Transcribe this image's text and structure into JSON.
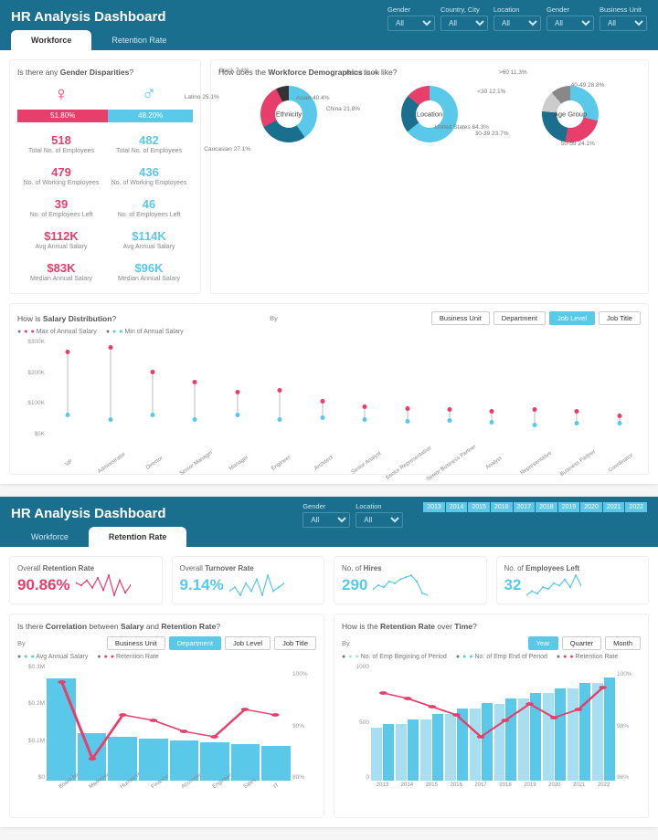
{
  "colors": {
    "brand": "#1a6e8e",
    "accent1": "#e73e6b",
    "accent2": "#5ac8e8",
    "grey": "#999",
    "page_bg": "#f5f5f5"
  },
  "dash1": {
    "title": "HR Analysis Dashboard",
    "tabs": [
      {
        "label": "Workforce",
        "active": true
      },
      {
        "label": "Retention Rate",
        "active": false
      }
    ],
    "filters": [
      {
        "label": "Gender",
        "value": "All"
      },
      {
        "label": "Country, City",
        "value": "All"
      },
      {
        "label": "Location",
        "value": "All"
      },
      {
        "label": "Gender",
        "value": "All"
      },
      {
        "label": "Business Unit",
        "value": "All"
      }
    ],
    "gender": {
      "title_pre": "Is there any ",
      "title_b": "Gender Disparities",
      "title_post": "?",
      "left": {
        "color": "#e73e6b",
        "pct": "51.80%",
        "icon": "♀"
      },
      "right": {
        "color": "#5ac8e8",
        "pct": "48.20%",
        "icon": "♂"
      },
      "rows": [
        {
          "l": "518",
          "r": "482",
          "lbl": "Total No. of Employees"
        },
        {
          "l": "479",
          "r": "436",
          "lbl": "No. of Working Employees"
        },
        {
          "l": "39",
          "r": "46",
          "lbl": "No. of Employees Left"
        },
        {
          "l": "$112K",
          "r": "$114K",
          "lbl": "Avg Annual Salary"
        },
        {
          "l": "$83K",
          "r": "$96K",
          "lbl": "Median Annual Salary"
        }
      ]
    },
    "demo": {
      "title_pre": "How does the ",
      "title_b": "Workforce Demographics",
      "title_post": " look like?",
      "ethnicity": {
        "center": "Ethnicity",
        "slices": [
          {
            "label": "Asian 40.4%",
            "v": 40.4,
            "color": "#5ac8e8"
          },
          {
            "label": "Caucasian 27.1%",
            "v": 27.1,
            "color": "#1a6e8e"
          },
          {
            "label": "Latino 25.1%",
            "v": 25.1,
            "color": "#e73e6b"
          },
          {
            "label": "Black 7.4%",
            "v": 7.4,
            "color": "#333333"
          }
        ]
      },
      "location": {
        "center": "Location",
        "slices": [
          {
            "label": "United States 64.3%",
            "v": 64.3,
            "color": "#5ac8e8"
          },
          {
            "label": "China 21.8%",
            "v": 21.8,
            "color": "#1a6e8e"
          },
          {
            "label": "Brazil 13.9%",
            "v": 13.9,
            "color": "#e73e6b"
          }
        ]
      },
      "age": {
        "center": "Age Group",
        "slices": [
          {
            "label": "40-49 28.8%",
            "v": 28.8,
            "color": "#5ac8e8"
          },
          {
            "label": "50-59 24.1%",
            "v": 24.1,
            "color": "#e73e6b"
          },
          {
            "label": "30-39 23.7%",
            "v": 23.7,
            "color": "#1a6e8e"
          },
          {
            "label": "<30 12.1%",
            "v": 12.1,
            "color": "#cccccc"
          },
          {
            "label": ">60 11.3%",
            "v": 11.3,
            "color": "#888888"
          }
        ]
      }
    },
    "salary": {
      "title_pre": "How is ",
      "title_b": "Salary Distribution",
      "title_post": "?",
      "by_label": "By",
      "seg": [
        "Business Unit",
        "Department",
        "Job Level",
        "Job Title"
      ],
      "seg_active": 2,
      "legend": [
        {
          "label": "Max of Annual Salary",
          "color": "#e73e6b"
        },
        {
          "label": "Min of Annual Salary",
          "color": "#5ac8e8"
        }
      ],
      "ylabels": [
        "$300K",
        "$200K",
        "$100K",
        "$0K"
      ],
      "ymax": 300,
      "points": [
        {
          "x": "VP",
          "max": 260,
          "min": 70
        },
        {
          "x": "Administrator",
          "max": 275,
          "min": 55
        },
        {
          "x": "Director",
          "max": 200,
          "min": 70
        },
        {
          "x": "Senior Manager",
          "max": 170,
          "min": 55
        },
        {
          "x": "Manager",
          "max": 140,
          "min": 70
        },
        {
          "x": "Engineer",
          "max": 145,
          "min": 55
        },
        {
          "x": "Architect",
          "max": 110,
          "min": 60
        },
        {
          "x": "Senior Analyst",
          "max": 95,
          "min": 55
        },
        {
          "x": "Senior Representative",
          "max": 90,
          "min": 50
        },
        {
          "x": "Senior Business Partner",
          "max": 85,
          "min": 52
        },
        {
          "x": "Analyst",
          "max": 80,
          "min": 48
        },
        {
          "x": "Representative",
          "max": 85,
          "min": 40
        },
        {
          "x": "Business Partner",
          "max": 80,
          "min": 45
        },
        {
          "x": "Coordinator",
          "max": 68,
          "min": 45
        }
      ]
    }
  },
  "dash2": {
    "title": "HR Analysis Dashboard",
    "tabs": [
      {
        "label": "Workforce",
        "active": false
      },
      {
        "label": "Retention Rate",
        "active": true
      }
    ],
    "filters": [
      {
        "label": "Gender",
        "value": "All"
      },
      {
        "label": "Location",
        "value": "All"
      }
    ],
    "years": [
      "2013",
      "2014",
      "2015",
      "2016",
      "2017",
      "2018",
      "2019",
      "2020",
      "2021",
      "2022"
    ],
    "kpis": [
      {
        "t_pre": "Overall ",
        "t_b": "Retention Rate",
        "v": "90.86%",
        "color": "#e73e6b",
        "spark": [
          92,
          91,
          93,
          90,
          94,
          89,
          95,
          87,
          93,
          88,
          91
        ]
      },
      {
        "t_pre": "Overall ",
        "t_b": "Turnover Rate",
        "v": "9.14%",
        "color": "#5ac8e8",
        "spark": [
          8,
          9,
          7,
          10,
          8,
          11,
          7,
          12,
          8,
          9,
          10
        ]
      },
      {
        "t_pre": "No. of ",
        "t_b": "Hires",
        "v": "290",
        "color": "#5ac8e8",
        "spark": [
          50,
          60,
          55,
          70,
          65,
          75,
          80,
          85,
          70,
          40,
          35
        ]
      },
      {
        "t_pre": "No. of ",
        "t_b": "Employees Left",
        "v": "32",
        "color": "#5ac8e8",
        "spark": [
          20,
          25,
          22,
          30,
          28,
          35,
          32,
          40,
          30,
          45,
          32
        ]
      }
    ],
    "corr": {
      "title_pre": "Is there ",
      "title_b1": "Correlation",
      "title_mid": " between ",
      "title_b2": "Salary",
      "title_mid2": " and ",
      "title_b3": "Retention Rate",
      "title_post": "?",
      "by_label": "By",
      "seg": [
        "Business Unit",
        "Department",
        "Job Level",
        "Job Title"
      ],
      "seg_active": 1,
      "legend": [
        {
          "label": "Avg Annual Salary",
          "color": "#5ac8e8"
        },
        {
          "label": "Retention Rate",
          "color": "#e73e6b"
        }
      ],
      "ylabels": [
        "$0.3M",
        "$0.2M",
        "$0.1M",
        "$0"
      ],
      "ymax": 0.3,
      "y2labels": [
        "100%",
        "90%",
        "80%"
      ],
      "items": [
        {
          "x": "Board Member",
          "bar": 0.28,
          "line": 98
        },
        {
          "x": "Marketing",
          "bar": 0.13,
          "line": 84
        },
        {
          "x": "Human Resources",
          "bar": 0.12,
          "line": 92
        },
        {
          "x": "Finance",
          "bar": 0.115,
          "line": 91
        },
        {
          "x": "Accounting",
          "bar": 0.11,
          "line": 89
        },
        {
          "x": "Engineering",
          "bar": 0.105,
          "line": 88
        },
        {
          "x": "Sales",
          "bar": 0.1,
          "line": 93
        },
        {
          "x": "IT",
          "bar": 0.095,
          "line": 92
        }
      ]
    },
    "time": {
      "title_pre": "How is the ",
      "title_b": "Retention Rate",
      "title_mid": " over ",
      "title_b2": "Time",
      "title_post": "?",
      "by_label": "By",
      "seg": [
        "Year",
        "Quarter",
        "Month"
      ],
      "seg_active": 0,
      "legend": [
        {
          "label": "No. of Emp Begining of Period",
          "color": "#a8dff0"
        },
        {
          "label": "No. of Emp End of Period",
          "color": "#5ac8e8"
        },
        {
          "label": "Retention Rate",
          "color": "#e73e6b"
        }
      ],
      "ylabels": [
        "1000",
        "500",
        "0"
      ],
      "ymax": 1000,
      "y2labels": [
        "100%",
        "98%",
        "96%"
      ],
      "items": [
        {
          "x": "2013",
          "b1": 480,
          "b2": 520,
          "line": 99.2
        },
        {
          "x": "2014",
          "b1": 520,
          "b2": 560,
          "line": 99.0
        },
        {
          "x": "2015",
          "b1": 560,
          "b2": 610,
          "line": 98.7
        },
        {
          "x": "2016",
          "b1": 610,
          "b2": 660,
          "line": 98.4
        },
        {
          "x": "2017",
          "b1": 660,
          "b2": 710,
          "line": 97.6
        },
        {
          "x": "2018",
          "b1": 700,
          "b2": 750,
          "line": 98.2
        },
        {
          "x": "2019",
          "b1": 750,
          "b2": 800,
          "line": 98.8
        },
        {
          "x": "2020",
          "b1": 800,
          "b2": 840,
          "line": 98.3
        },
        {
          "x": "2021",
          "b1": 840,
          "b2": 890,
          "line": 98.6
        },
        {
          "x": "2022",
          "b1": 890,
          "b2": 940,
          "line": 99.4
        }
      ]
    }
  }
}
